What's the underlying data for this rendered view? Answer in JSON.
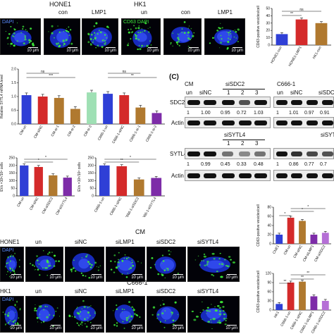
{
  "panel_a": {
    "group1": "HONE1",
    "group2": "HK1",
    "col_labels": [
      "con",
      "LMP1",
      "un",
      "con",
      "LMP1"
    ],
    "stain_dapi": "DAPI",
    "stain_cd63": "CD63",
    "scale": "10 μm"
  },
  "panel_c": {
    "letter": "(C)",
    "cm_label": "CM",
    "c666_label": "C666-1",
    "sinc": "siNC",
    "sisdc2": "siSDC2",
    "sisytl4": "siSYTL4",
    "un": "un",
    "lane_nums": [
      "1",
      "2",
      "3"
    ],
    "sdc2_label": "SDC2",
    "actin_label": "Actin",
    "sytl4_label": "SYTL4",
    "sdc2_values_cm": [
      "1",
      "1.00",
      "0.95",
      "0.72",
      "1.03"
    ],
    "sdc2_values_c666": [
      "1",
      "1.01",
      "0.97",
      "0.91"
    ],
    "sytl4_values_cm": [
      "1",
      "0.99",
      "0.45",
      "0.33",
      "0.48"
    ],
    "sytl4_values_c666": [
      "1",
      "0.86",
      "0.77",
      "0.7"
    ]
  },
  "panel_bottom": {
    "cm_title": "CM",
    "c666_title": "C666-1",
    "row1_cols": [
      "HONE1",
      "un",
      "siNC",
      "siLMP1",
      "siSDC2",
      "siSYTL4"
    ],
    "row2_cols": [
      "HK1",
      "un",
      "siNC",
      "siLMP1",
      "siSDC2",
      "siSYTL4"
    ],
    "dapi": "DAPI",
    "scale": "10 μm"
  },
  "chart_labels": {
    "ylabel_top": "CD63-positive vesicles/cell",
    "ylabel_mrna": "Relative SYTL4 mRNA level",
    "ylabel_evs": "EVs  ×10⁸/10⁶ cells",
    "ylabel_cd63": "CD63-positive vesicles/cell",
    "sig_ns": "ns",
    "sig_2": "**",
    "sig_1": "*",
    "sig_3": "***"
  },
  "chart_data": [
    {
      "type": "bar",
      "ylabel": "CD63-positive vesicles/cell",
      "categories": [
        "HONE1-con",
        "HONE1-LMP1",
        "HK1-con"
      ],
      "values": [
        15,
        35,
        30
      ],
      "colors": [
        "#2f3fd6",
        "#d42a2a",
        "#b0792f"
      ],
      "ylim": [
        0,
        50
      ],
      "ticks": [
        "0",
        "10",
        "20",
        "30",
        "40",
        "50"
      ]
    },
    {
      "type": "bar",
      "ylabel": "Relative SYTL4 mRNA level",
      "categories": [
        "CM-un",
        "CM-siNC",
        "CM-si-1",
        "CM-si-2",
        "CM-si-3",
        "C666-1-un",
        "C666-1-siNC",
        "C666-1-si-1",
        "C666-1-si-2"
      ],
      "values": [
        1.05,
        1.0,
        0.95,
        0.55,
        1.15,
        1.1,
        1.05,
        0.6,
        0.4
      ],
      "colors": [
        "#2f3fd6",
        "#d42a2a",
        "#b0792f",
        "#b0792f",
        "#9fe0b4",
        "#2f3fd6",
        "#d42a2a",
        "#b0792f",
        "#7d2ca8"
      ],
      "ylim": [
        0,
        2.0
      ],
      "ticks": [
        "0.0",
        "0.5",
        "1.0",
        "1.5",
        "2.0"
      ]
    },
    {
      "type": "bar",
      "ylabel": "EVs  ×10⁸/10⁶ cells",
      "categories": [
        "CM-un",
        "CM-siNC",
        "CM-siSDC2",
        "CM-siSYTL4"
      ],
      "values": [
        200,
        190,
        135,
        120
      ],
      "colors": [
        "#2f3fd6",
        "#d42a2a",
        "#b0792f",
        "#7d2ca8"
      ],
      "ylim": [
        0,
        250
      ],
      "ticks": [
        "0",
        "50",
        "100",
        "150",
        "200",
        "250"
      ]
    },
    {
      "type": "bar",
      "ylabel": "EVs  ×10⁸/10⁶ cells",
      "categories": [
        "C666-1-un",
        "C666-1-siNC",
        "C666-1-siSDC2",
        "C666-1-siSYTL4"
      ],
      "values": [
        200,
        195,
        108,
        118
      ],
      "colors": [
        "#2f3fd6",
        "#d42a2a",
        "#b0792f",
        "#7d2ca8"
      ],
      "ylim": [
        0,
        250
      ],
      "ticks": [
        "0",
        "50",
        "100",
        "150",
        "200",
        "250"
      ]
    },
    {
      "type": "bar",
      "ylabel": "CD63-positive vesicles/cell",
      "categories": [
        "CNE1",
        "CM-un",
        "CM-siNC",
        "CM-siLMP1",
        "CM-siSDC2"
      ],
      "values": [
        20,
        57,
        50,
        20,
        24
      ],
      "colors": [
        "#2f3fd6",
        "#d42a2a",
        "#b0792f",
        "#7d2ca8",
        "#b56fd6"
      ],
      "ylim": [
        0,
        80
      ],
      "ticks": [
        "0",
        "20",
        "40",
        "60",
        "80"
      ]
    },
    {
      "type": "bar",
      "ylabel": "CD63-positive vesicles/cell",
      "categories": [
        "HK1",
        "C666-1-un",
        "C666-1-siNC",
        "C666-1-siLMP1",
        "C666-1-siSDC2"
      ],
      "values": [
        20,
        90,
        93,
        45,
        30
      ],
      "colors": [
        "#2f3fd6",
        "#d42a2a",
        "#b0792f",
        "#7d2ca8",
        "#b56fd6"
      ],
      "ylim": [
        0,
        120
      ],
      "ticks": [
        "0",
        "30",
        "60",
        "90",
        "120"
      ]
    }
  ]
}
